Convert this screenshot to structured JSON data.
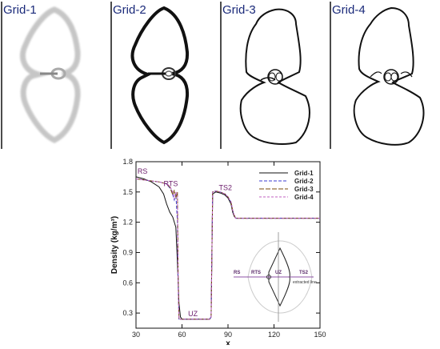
{
  "panels": [
    {
      "label": "Grid-1"
    },
    {
      "label": "Grid-2"
    },
    {
      "label": "Grid-3"
    },
    {
      "label": "Grid-4"
    }
  ],
  "chart_data": {
    "type": "line",
    "title": "",
    "xlabel": "x",
    "ylabel": "Density (kg/m³)",
    "xlim": [
      30,
      150
    ],
    "ylim": [
      0.15,
      1.8
    ],
    "xticks": [
      30,
      60,
      90,
      120,
      150
    ],
    "yticks": [
      0.3,
      0.6,
      0.9,
      1.2,
      1.5,
      1.8
    ],
    "ytick_labels": [
      "0.3",
      "0.6",
      "0.9",
      "1.2",
      "1.5",
      "1.8"
    ],
    "grid": false,
    "legend_position": "top-right",
    "series": [
      {
        "name": "Grid-1",
        "color": "#111111",
        "dash": "solid",
        "x": [
          30,
          35,
          40,
          45,
          48,
          50,
          52,
          54,
          56,
          57,
          58,
          59,
          60,
          65,
          70,
          75,
          78,
          79,
          80,
          82,
          85,
          88,
          90,
          92,
          93,
          94,
          95,
          100,
          120,
          150
        ],
        "y": [
          1.65,
          1.63,
          1.6,
          1.55,
          1.48,
          1.38,
          1.3,
          1.25,
          1.15,
          0.8,
          0.4,
          0.26,
          0.24,
          0.24,
          0.24,
          0.24,
          0.24,
          0.26,
          1.48,
          1.5,
          1.49,
          1.47,
          1.44,
          1.38,
          1.3,
          1.26,
          1.24,
          1.24,
          1.24,
          1.24
        ]
      },
      {
        "name": "Grid-2",
        "color": "#3b3bd0",
        "dash": "4,2",
        "x": [
          30,
          35,
          40,
          45,
          50,
          53,
          55,
          56,
          57,
          57.5,
          58,
          59,
          60,
          65,
          70,
          75,
          78,
          79,
          80,
          82,
          85,
          88,
          90,
          92,
          93,
          94,
          95,
          100,
          120,
          150
        ],
        "y": [
          1.63,
          1.62,
          1.61,
          1.6,
          1.58,
          1.52,
          1.42,
          1.48,
          1.2,
          0.55,
          0.24,
          0.24,
          0.24,
          0.24,
          0.24,
          0.24,
          0.24,
          0.26,
          1.5,
          1.51,
          1.5,
          1.48,
          1.45,
          1.4,
          1.32,
          1.27,
          1.24,
          1.24,
          1.24,
          1.24
        ]
      },
      {
        "name": "Grid-3",
        "color": "#7a4a0a",
        "dash": "6,2",
        "x": [
          30,
          35,
          40,
          45,
          50,
          52,
          54,
          55,
          56,
          57,
          57.5,
          58,
          60,
          65,
          70,
          75,
          78,
          79,
          80,
          82,
          85,
          88,
          90,
          92,
          93,
          94,
          95,
          100,
          120,
          150
        ],
        "y": [
          1.63,
          1.62,
          1.61,
          1.6,
          1.58,
          1.55,
          1.47,
          1.52,
          1.44,
          1.5,
          0.7,
          0.24,
          0.24,
          0.24,
          0.24,
          0.24,
          0.24,
          0.26,
          1.5,
          1.51,
          1.5,
          1.48,
          1.45,
          1.4,
          1.32,
          1.27,
          1.24,
          1.24,
          1.24,
          1.24
        ]
      },
      {
        "name": "Grid-4",
        "color": "#c060c0",
        "dash": "3,2",
        "x": [
          30,
          35,
          40,
          45,
          50,
          52,
          54,
          55,
          56,
          57,
          57.5,
          58,
          60,
          65,
          70,
          75,
          78,
          79,
          80,
          82,
          85,
          88,
          90,
          92,
          93,
          94,
          95,
          100,
          120,
          150
        ],
        "y": [
          1.63,
          1.62,
          1.61,
          1.6,
          1.58,
          1.56,
          1.5,
          1.43,
          1.5,
          1.47,
          0.6,
          0.24,
          0.24,
          0.24,
          0.24,
          0.24,
          0.24,
          0.26,
          1.5,
          1.51,
          1.5,
          1.48,
          1.45,
          1.4,
          1.32,
          1.27,
          1.24,
          1.24,
          1.24,
          1.24
        ]
      }
    ],
    "annotations": [
      {
        "text": "RS",
        "x": 31,
        "y": 1.68
      },
      {
        "text": "RTS",
        "x": 48,
        "y": 1.56
      },
      {
        "text": "TS2",
        "x": 84,
        "y": 1.52
      },
      {
        "text": "UZ",
        "x": 64,
        "y": 0.27
      }
    ],
    "inset_labels": {
      "rs": "RS",
      "rts": "RTS",
      "uz": "UZ",
      "ts2": "TS2",
      "line": "extracted line"
    }
  }
}
